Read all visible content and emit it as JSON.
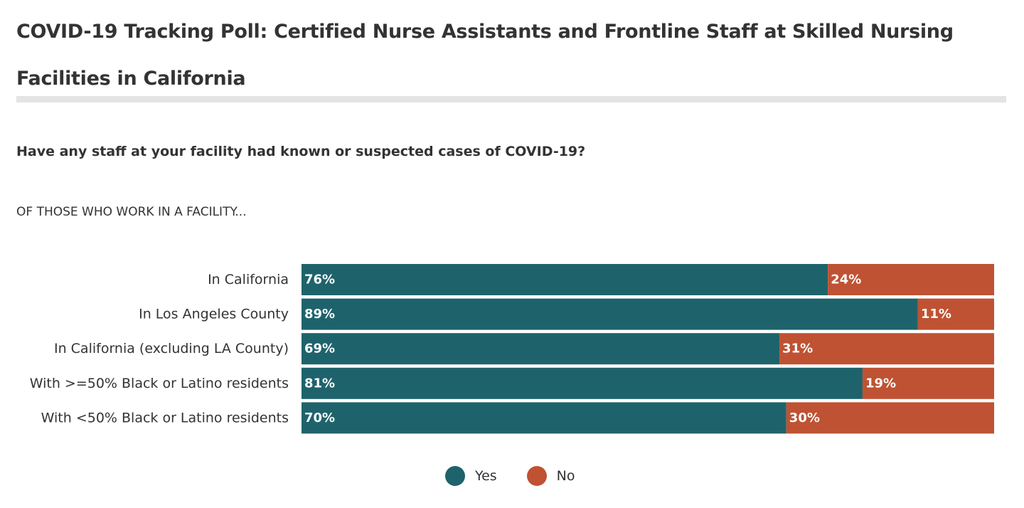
{
  "header": {
    "title": "COVID-19 Tracking Poll: Certified Nurse Assistants and Frontline Staff at Skilled Nursing Facilities in California",
    "question": "Have any staff at your facility had known or suspected cases of COVID-19?",
    "subhead": "OF THOSE WHO WORK IN A FACILITY..."
  },
  "legend": {
    "yes_label": "Yes",
    "no_label": "No"
  },
  "colors": {
    "yes": "#1e636c",
    "no": "#bf5233"
  },
  "chart_data": {
    "type": "bar",
    "stacked": true,
    "orientation": "horizontal",
    "title": "Have any staff at your facility had known or suspected cases of COVID-19?",
    "categories": [
      "In California",
      "In Los Angeles County",
      "In California (excluding LA County)",
      "With >=50% Black or Latino residents",
      "With <50% Black or Latino residents"
    ],
    "series": [
      {
        "name": "Yes",
        "values": [
          76,
          89,
          69,
          81,
          70
        ]
      },
      {
        "name": "No",
        "values": [
          24,
          11,
          31,
          19,
          30
        ]
      }
    ],
    "data_labels": {
      "Yes": [
        "76%",
        "89%",
        "69%",
        "81%",
        "70%"
      ],
      "No": [
        "24%",
        "11%",
        "31%",
        "19%",
        "30%"
      ]
    },
    "xlim": [
      0,
      100
    ],
    "grid": false,
    "legend_position": "bottom-center"
  }
}
